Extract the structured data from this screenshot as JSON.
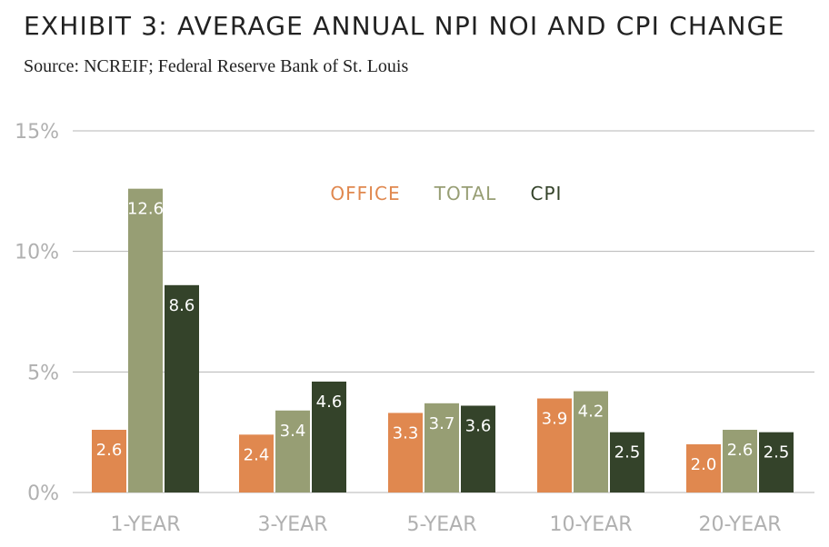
{
  "title": "EXHIBIT 3: AVERAGE ANNUAL NPI NOI AND CPI CHANGE",
  "subtitle": "Source: NCREIF; Federal Reserve Bank of St. Louis",
  "colors": {
    "office": "#e0884f",
    "total": "#979e74",
    "cpi": "#34432a",
    "grid": "#b5b5b5",
    "tick_text": "#b0b0b0"
  },
  "chart_data": {
    "type": "bar",
    "categories": [
      "1-YEAR",
      "3-YEAR",
      "5-YEAR",
      "10-YEAR",
      "20-YEAR"
    ],
    "series": [
      {
        "name": "OFFICE",
        "values": [
          2.6,
          2.4,
          3.3,
          3.9,
          2.0
        ],
        "labels": [
          "2.6",
          "2.4",
          "3.3",
          "3.9",
          "2.0"
        ]
      },
      {
        "name": "TOTAL",
        "values": [
          12.6,
          3.4,
          3.7,
          4.2,
          2.6
        ],
        "labels": [
          "12.6",
          "3.4",
          "3.7",
          "4.2",
          "2.6"
        ]
      },
      {
        "name": "CPI",
        "values": [
          8.6,
          4.6,
          3.6,
          2.5,
          2.5
        ],
        "labels": [
          "8.6",
          "4.6",
          "3.6",
          "2.5",
          "2.5"
        ]
      }
    ],
    "ylim": [
      0,
      15
    ],
    "yticks": [
      0,
      5,
      10,
      15
    ],
    "ytick_labels": [
      "0%",
      "5%",
      "10%",
      "15%"
    ],
    "grid": true,
    "legend_position": "top-center"
  }
}
